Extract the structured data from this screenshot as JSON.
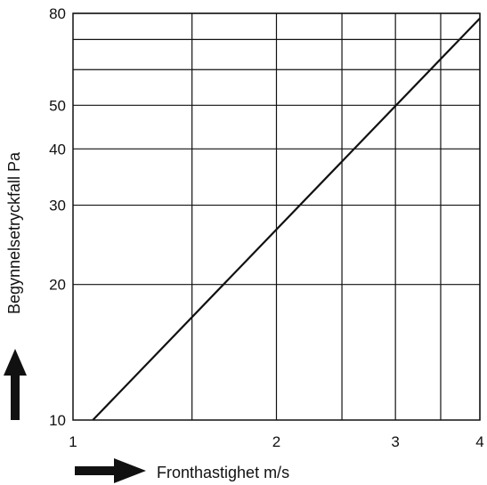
{
  "chart_data": {
    "type": "line",
    "title": "",
    "xlabel": "Fronthastighet m/s",
    "ylabel": "Begynnelsetryckfall Pa",
    "x_scale": "log",
    "y_scale": "log",
    "xlim": [
      1,
      4
    ],
    "ylim": [
      10,
      80
    ],
    "x_ticks": [
      1,
      2,
      3,
      4
    ],
    "x_tick_labels": [
      "1",
      "2",
      "3",
      "4"
    ],
    "y_ticks": [
      10,
      20,
      30,
      40,
      50,
      80
    ],
    "y_tick_labels": [
      "10",
      "20",
      "30",
      "40",
      "50",
      "80"
    ],
    "x_gridlines": [
      1.5,
      2,
      2.5,
      3,
      3.5,
      4
    ],
    "y_gridlines": [
      20,
      30,
      40,
      50,
      60,
      70,
      80
    ],
    "grid": true,
    "series": [
      {
        "x": [
          1.07,
          4.0
        ],
        "y": [
          10,
          78
        ]
      }
    ],
    "arrows": {
      "x_axis": "right",
      "y_axis": "up"
    }
  }
}
